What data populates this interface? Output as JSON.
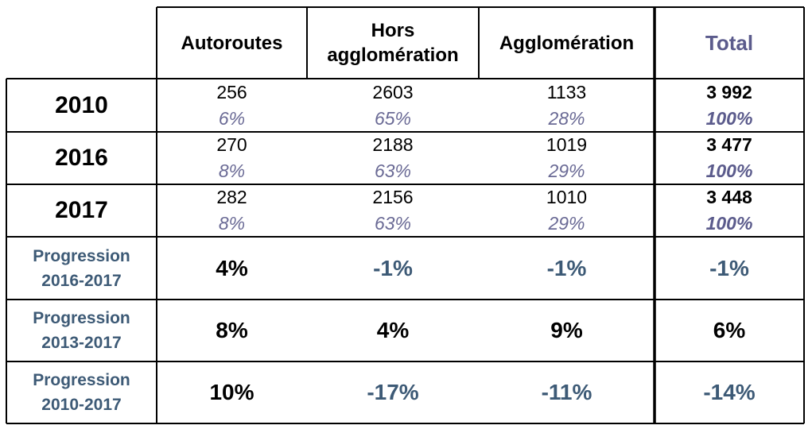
{
  "chart_data": {
    "type": "table",
    "columns": [
      "Autoroutes",
      "Hors agglomération",
      "Agglomération",
      "Total"
    ],
    "header": {
      "col1": "Autoroutes",
      "col2_line1": "Hors",
      "col2_line2": "agglomération",
      "col3": "Agglomération",
      "col4": "Total"
    },
    "rows": [
      {
        "label": "2010",
        "counts": [
          "256",
          "2603",
          "1133",
          "3 992"
        ],
        "percents": [
          "6%",
          "65%",
          "28%",
          "100%"
        ]
      },
      {
        "label": "2016",
        "counts": [
          "270",
          "2188",
          "1019",
          "3 477"
        ],
        "percents": [
          "8%",
          "63%",
          "29%",
          "100%"
        ]
      },
      {
        "label": "2017",
        "counts": [
          "282",
          "2156",
          "1010",
          "3 448"
        ],
        "percents": [
          "8%",
          "63%",
          "29%",
          "100%"
        ]
      }
    ],
    "progressions": [
      {
        "label_line1": "Progression",
        "label_line2": "2016-2017",
        "values": [
          "4%",
          "-1%",
          "-1%",
          "-1%"
        ]
      },
      {
        "label_line1": "Progression",
        "label_line2": "2013-2017",
        "values": [
          "8%",
          "4%",
          "9%",
          "6%"
        ]
      },
      {
        "label_line1": "Progression",
        "label_line2": "2010-2017",
        "values": [
          "10%",
          "-17%",
          "-11%",
          "-14%"
        ]
      }
    ]
  },
  "colors": {
    "total_header": "#5b5b8c",
    "percent_text": "#6a6a95",
    "progression_label": "#3d5a76",
    "negative_value": "#3d5a76",
    "grid": "#000000"
  }
}
